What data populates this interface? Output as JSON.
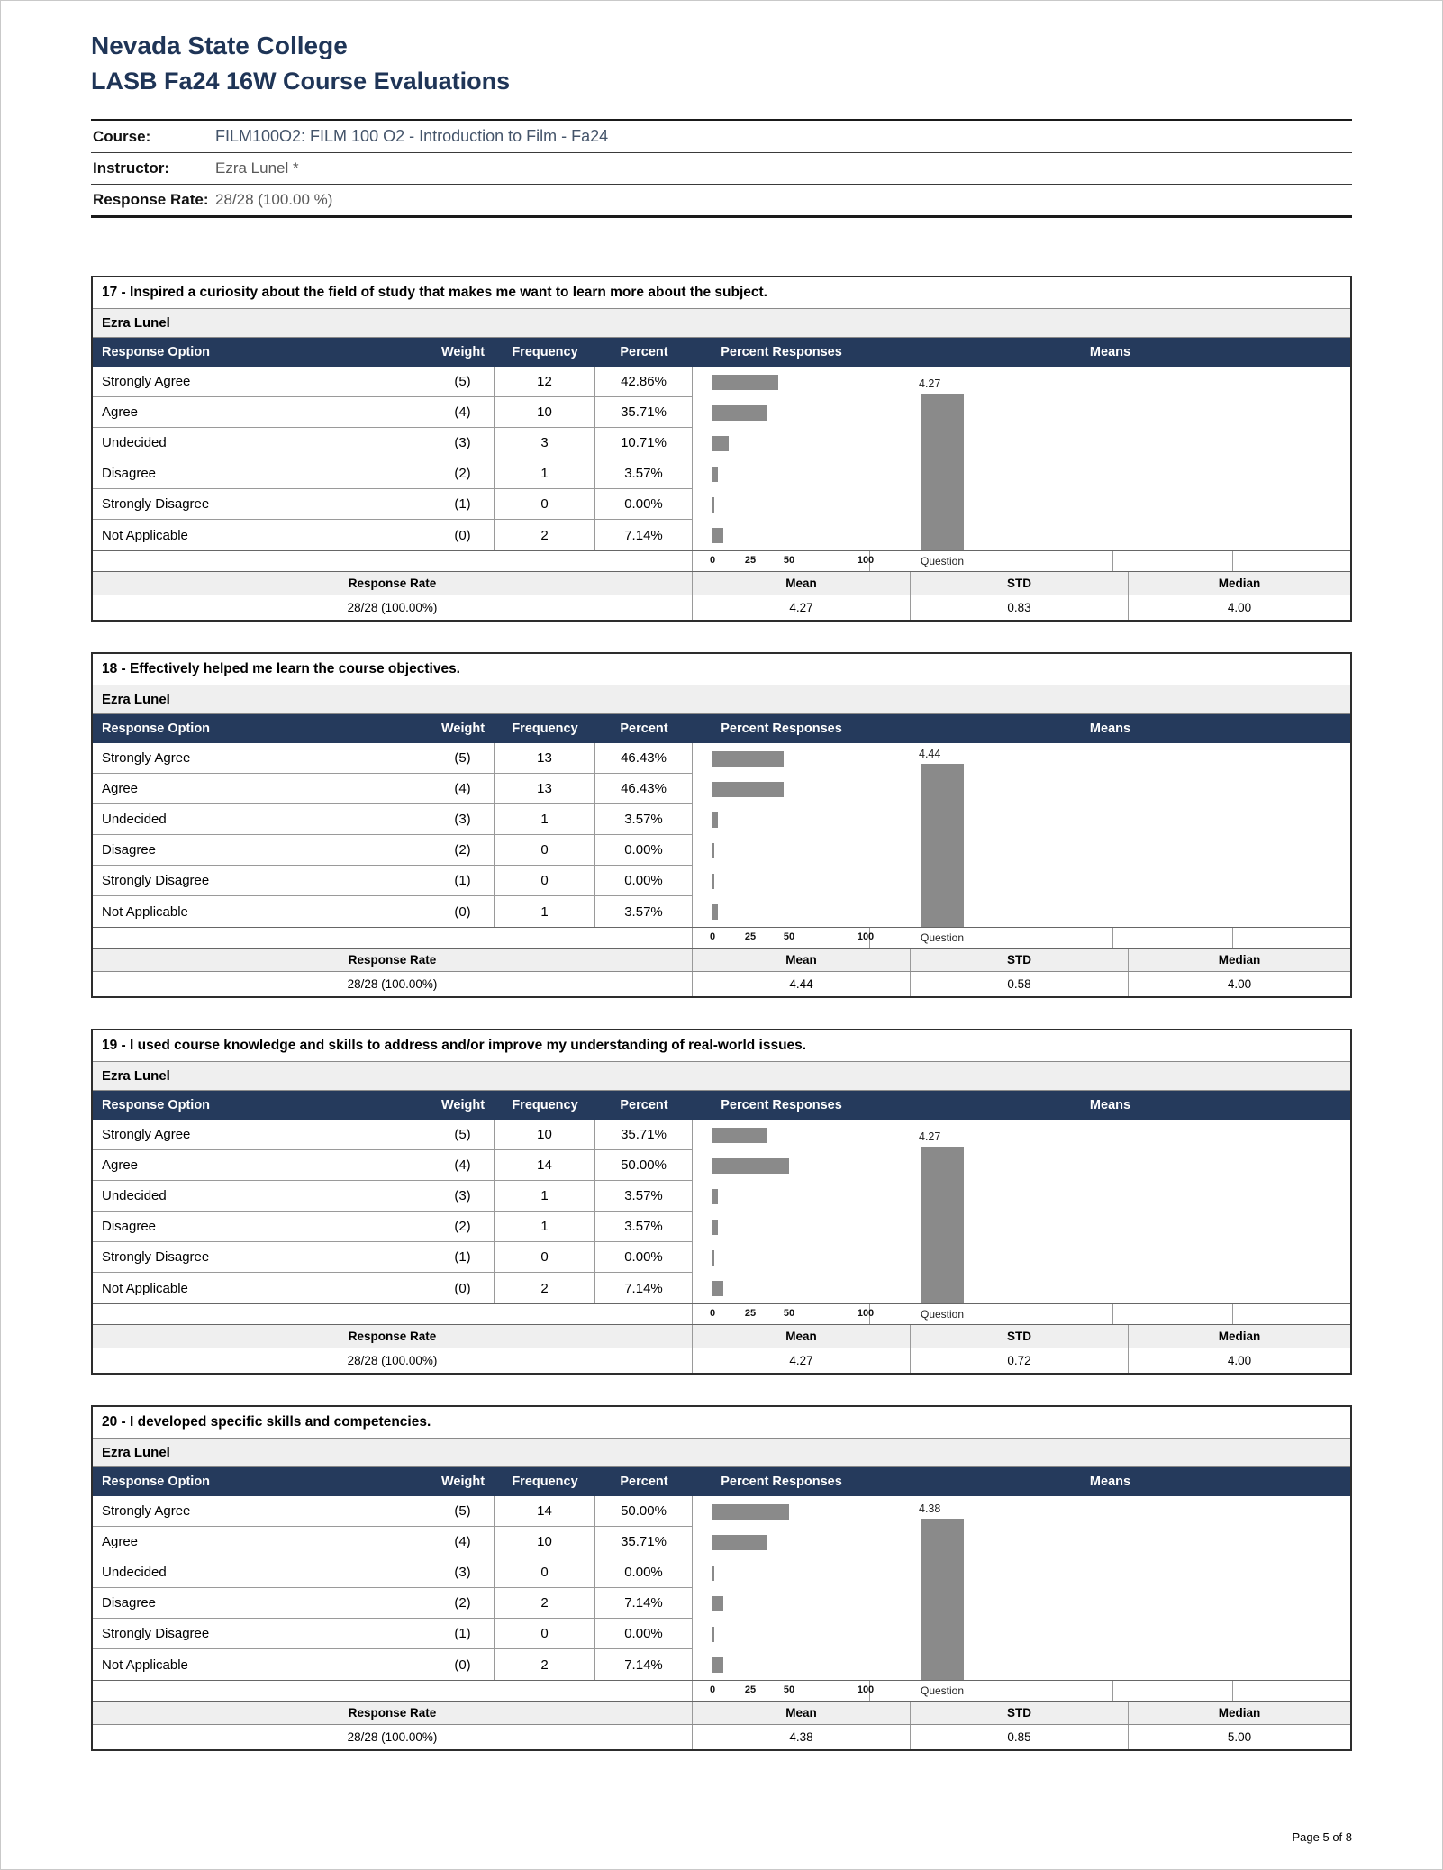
{
  "page": {
    "institution": "Nevada State College",
    "report_title": "LASB Fa24 16W Course Evaluations",
    "page_number_label": "Page 5 of 8"
  },
  "course_info": {
    "course_label": "Course:",
    "course_value": "FILM100O2: FILM 100 O2 - Introduction to Film - Fa24",
    "instructor_label": "Instructor:",
    "instructor_value": "Ezra Lunel *",
    "response_rate_label": "Response Rate:",
    "response_rate_value": "28/28 (100.00 %)"
  },
  "colors": {
    "navy_title": "#1f3557",
    "table_header_bg": "#253a5c",
    "bar_gray": "#8a8a8a",
    "row_shade": "#efefef"
  },
  "question_table": {
    "columns": [
      "Response Option",
      "Weight",
      "Frequency",
      "Percent",
      "Percent Responses",
      "Means"
    ],
    "axis_ticks": [
      "0",
      "25",
      "50",
      "100"
    ],
    "question_label": "Question",
    "footer_headers": [
      "Response Rate",
      "Mean",
      "STD",
      "Median"
    ]
  },
  "questions": [
    {
      "title": "17 - Inspired a curiosity about the field of study that makes me want to learn more about the subject.",
      "instructor": "Ezra Lunel",
      "rows": [
        {
          "option": "Strongly Agree",
          "weight": "(5)",
          "frequency": "12",
          "percent": "42.86%",
          "percent_value": 42.86
        },
        {
          "option": "Agree",
          "weight": "(4)",
          "frequency": "10",
          "percent": "35.71%",
          "percent_value": 35.71
        },
        {
          "option": "Undecided",
          "weight": "(3)",
          "frequency": "3",
          "percent": "10.71%",
          "percent_value": 10.71
        },
        {
          "option": "Disagree",
          "weight": "(2)",
          "frequency": "1",
          "percent": "3.57%",
          "percent_value": 3.57
        },
        {
          "option": "Strongly Disagree",
          "weight": "(1)",
          "frequency": "0",
          "percent": "0.00%",
          "percent_value": 0
        },
        {
          "option": "Not Applicable",
          "weight": "(0)",
          "frequency": "2",
          "percent": "7.14%",
          "percent_value": 7.14
        }
      ],
      "response_rate": "28/28 (100.00%)",
      "mean": "4.27",
      "mean_value": 4.27,
      "std": "0.83",
      "median": "4.00"
    },
    {
      "title": "18 - Effectively helped me learn the course objectives.",
      "instructor": "Ezra Lunel",
      "rows": [
        {
          "option": "Strongly Agree",
          "weight": "(5)",
          "frequency": "13",
          "percent": "46.43%",
          "percent_value": 46.43
        },
        {
          "option": "Agree",
          "weight": "(4)",
          "frequency": "13",
          "percent": "46.43%",
          "percent_value": 46.43
        },
        {
          "option": "Undecided",
          "weight": "(3)",
          "frequency": "1",
          "percent": "3.57%",
          "percent_value": 3.57
        },
        {
          "option": "Disagree",
          "weight": "(2)",
          "frequency": "0",
          "percent": "0.00%",
          "percent_value": 0
        },
        {
          "option": "Strongly Disagree",
          "weight": "(1)",
          "frequency": "0",
          "percent": "0.00%",
          "percent_value": 0
        },
        {
          "option": "Not Applicable",
          "weight": "(0)",
          "frequency": "1",
          "percent": "3.57%",
          "percent_value": 3.57
        }
      ],
      "response_rate": "28/28 (100.00%)",
      "mean": "4.44",
      "mean_value": 4.44,
      "std": "0.58",
      "median": "4.00"
    },
    {
      "title": "19 - I used course knowledge and skills to address and/or improve my understanding of real-world issues.",
      "instructor": "Ezra Lunel",
      "rows": [
        {
          "option": "Strongly Agree",
          "weight": "(5)",
          "frequency": "10",
          "percent": "35.71%",
          "percent_value": 35.71
        },
        {
          "option": "Agree",
          "weight": "(4)",
          "frequency": "14",
          "percent": "50.00%",
          "percent_value": 50
        },
        {
          "option": "Undecided",
          "weight": "(3)",
          "frequency": "1",
          "percent": "3.57%",
          "percent_value": 3.57
        },
        {
          "option": "Disagree",
          "weight": "(2)",
          "frequency": "1",
          "percent": "3.57%",
          "percent_value": 3.57
        },
        {
          "option": "Strongly Disagree",
          "weight": "(1)",
          "frequency": "0",
          "percent": "0.00%",
          "percent_value": 0
        },
        {
          "option": "Not Applicable",
          "weight": "(0)",
          "frequency": "2",
          "percent": "7.14%",
          "percent_value": 7.14
        }
      ],
      "response_rate": "28/28 (100.00%)",
      "mean": "4.27",
      "mean_value": 4.27,
      "std": "0.72",
      "median": "4.00"
    },
    {
      "title": "20 - I developed specific skills and competencies.",
      "instructor": "Ezra Lunel",
      "rows": [
        {
          "option": "Strongly Agree",
          "weight": "(5)",
          "frequency": "14",
          "percent": "50.00%",
          "percent_value": 50
        },
        {
          "option": "Agree",
          "weight": "(4)",
          "frequency": "10",
          "percent": "35.71%",
          "percent_value": 35.71
        },
        {
          "option": "Undecided",
          "weight": "(3)",
          "frequency": "0",
          "percent": "0.00%",
          "percent_value": 0
        },
        {
          "option": "Disagree",
          "weight": "(2)",
          "frequency": "2",
          "percent": "7.14%",
          "percent_value": 7.14
        },
        {
          "option": "Strongly Disagree",
          "weight": "(1)",
          "frequency": "0",
          "percent": "0.00%",
          "percent_value": 0
        },
        {
          "option": "Not Applicable",
          "weight": "(0)",
          "frequency": "2",
          "percent": "7.14%",
          "percent_value": 7.14
        }
      ],
      "response_rate": "28/28 (100.00%)",
      "mean": "4.38",
      "mean_value": 4.38,
      "std": "0.85",
      "median": "5.00"
    }
  ]
}
